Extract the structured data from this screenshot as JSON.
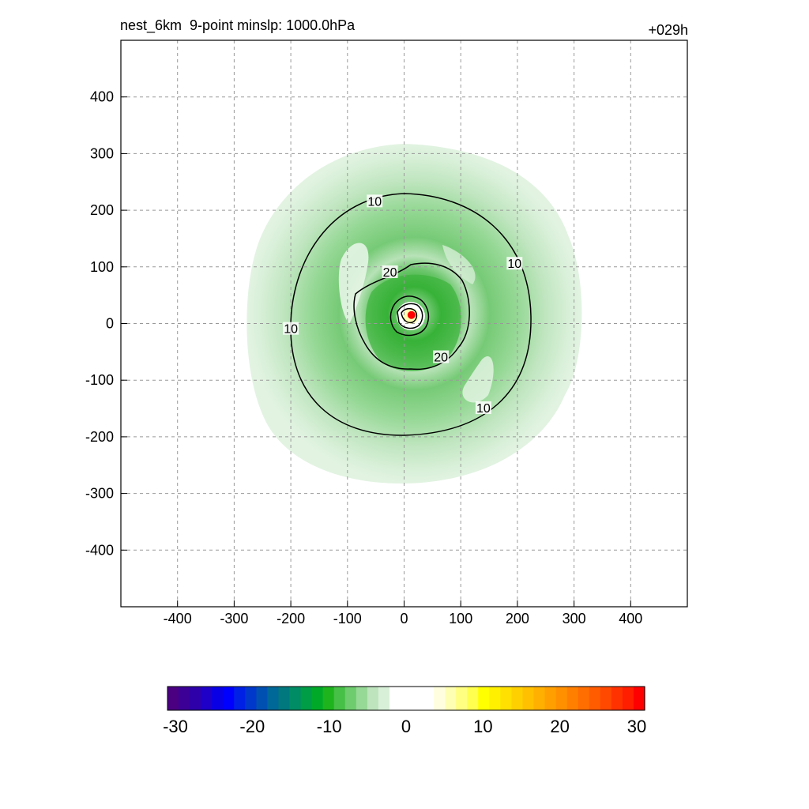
{
  "chart_data": {
    "type": "contour",
    "title": "nest_6km  9-point minslp: 1000.0hPa",
    "time_label": "+029h",
    "xlim": [
      -500,
      500
    ],
    "ylim": [
      -500,
      500
    ],
    "xticks": [
      -400,
      -300,
      -200,
      -100,
      0,
      100,
      200,
      300,
      400
    ],
    "yticks": [
      -400,
      -300,
      -200,
      -100,
      0,
      100,
      200,
      300,
      400
    ],
    "grid": true,
    "center_marker": {
      "x": 13,
      "y": 15,
      "color": "#ff0000"
    },
    "contour_lines": [
      {
        "level": 10,
        "label": "10",
        "label_points": [
          [
            -52,
            215
          ],
          [
            195,
            105
          ],
          [
            -200,
            -10
          ],
          [
            140,
            -150
          ]
        ]
      },
      {
        "level": 20,
        "label": "20",
        "label_points": [
          [
            -25,
            90
          ],
          [
            65,
            -60
          ]
        ]
      }
    ],
    "colorbar": {
      "ticks": [
        -30,
        -20,
        -10,
        0,
        10,
        20,
        30
      ],
      "colors": [
        "#4b0082",
        "#3c0096",
        "#2d00aa",
        "#1e00c8",
        "#0a00e6",
        "#0000ff",
        "#0020e6",
        "#0038cc",
        "#0050b2",
        "#006898",
        "#00787e",
        "#008c64",
        "#009c46",
        "#00aa28",
        "#1eb41e",
        "#46c046",
        "#6ecc6e",
        "#96d896",
        "#bee4be",
        "#d8f0d8",
        "#ffffff",
        "#ffffff",
        "#ffffff",
        "#ffffff",
        "#ffffe0",
        "#ffffb4",
        "#ffff82",
        "#ffff50",
        "#ffff00",
        "#fff000",
        "#ffe000",
        "#ffd000",
        "#ffc000",
        "#ffb000",
        "#ffa000",
        "#ff9000",
        "#ff8000",
        "#ff6e00",
        "#ff5c00",
        "#ff4800",
        "#ff3200",
        "#ff1e00",
        "#ff0000"
      ]
    }
  }
}
